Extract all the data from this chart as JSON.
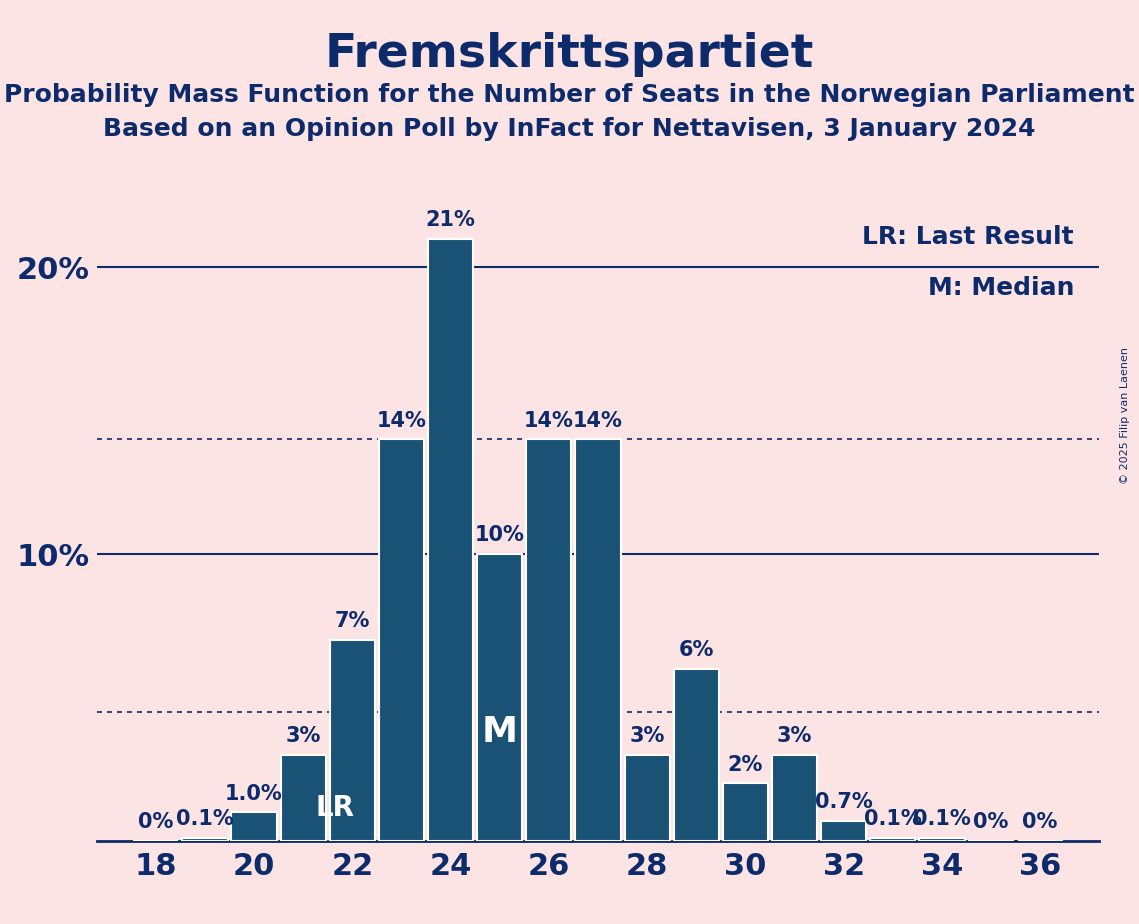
{
  "title": "Fremskrittspartiet",
  "subtitle1": "Probability Mass Function for the Number of Seats in the Norwegian Parliament",
  "subtitle2": "Based on an Opinion Poll by InFact for Nettavisen, 3 January 2024",
  "copyright": "© 2025 Filip van Laenen",
  "seats": [
    18,
    19,
    20,
    21,
    22,
    23,
    24,
    25,
    26,
    27,
    28,
    29,
    30,
    31,
    32,
    33,
    34,
    35,
    36
  ],
  "probabilities": [
    0.0,
    0.1,
    1.0,
    3.0,
    7.0,
    14.0,
    21.0,
    10.0,
    14.0,
    14.0,
    3.0,
    6.0,
    2.0,
    3.0,
    0.7,
    0.1,
    0.1,
    0.0,
    0.0
  ],
  "bar_labels": [
    "0%",
    "0.1%",
    "1.0%",
    "3%",
    "7%",
    "14%",
    "21%",
    "10%",
    "14%",
    "14%",
    "3%",
    "6%",
    "2%",
    "3%",
    "0.7%",
    "0.1%",
    "0.1%",
    "0%",
    "0%"
  ],
  "bar_color": "#1a5276",
  "background_color": "#fce4e4",
  "text_color": "#0d2b6b",
  "lr_seat": 21,
  "median_seat": 25,
  "dotted_lines": [
    4.5,
    14.0
  ],
  "xlabel_fontsize": 22,
  "ylabel_fontsize": 22,
  "title_fontsize": 34,
  "subtitle_fontsize": 18,
  "bar_label_fontsize": 15,
  "lr_label": "LR",
  "m_label": "M",
  "lr_legend": "LR: Last Result",
  "m_legend": "M: Median"
}
